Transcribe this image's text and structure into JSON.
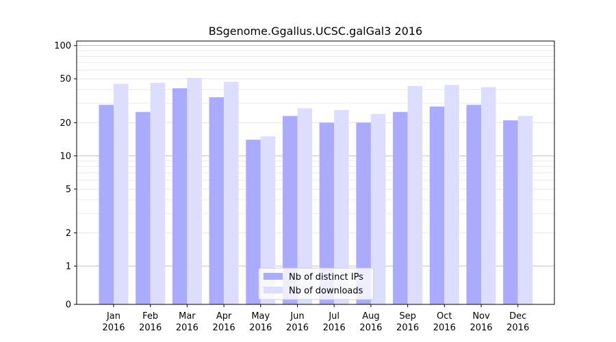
{
  "chart_data": {
    "type": "bar",
    "title": "BSgenome.Ggallus.UCSC.galGal3 2016",
    "xlabel": "",
    "ylabel": "",
    "yscale": "symlog",
    "ylim": [
      0,
      110
    ],
    "yticks": [
      0,
      1,
      2,
      5,
      10,
      20,
      50,
      100
    ],
    "grid": true,
    "legend_position": "bottom-center",
    "categories": [
      [
        "Jan",
        "2016"
      ],
      [
        "Feb",
        "2016"
      ],
      [
        "Mar",
        "2016"
      ],
      [
        "Apr",
        "2016"
      ],
      [
        "May",
        "2016"
      ],
      [
        "Jun",
        "2016"
      ],
      [
        "Jul",
        "2016"
      ],
      [
        "Aug",
        "2016"
      ],
      [
        "Sep",
        "2016"
      ],
      [
        "Oct",
        "2016"
      ],
      [
        "Nov",
        "2016"
      ],
      [
        "Dec",
        "2016"
      ]
    ],
    "series": [
      {
        "name": "Nb of distinct IPs",
        "color": "#aaaaff",
        "values": [
          29,
          25,
          41,
          34,
          14,
          23,
          20,
          20,
          25,
          28,
          29,
          21
        ]
      },
      {
        "name": "Nb of downloads",
        "color": "#ddddff",
        "values": [
          45,
          46,
          51,
          47,
          15,
          27,
          26,
          24,
          43,
          44,
          42,
          23
        ]
      }
    ]
  }
}
